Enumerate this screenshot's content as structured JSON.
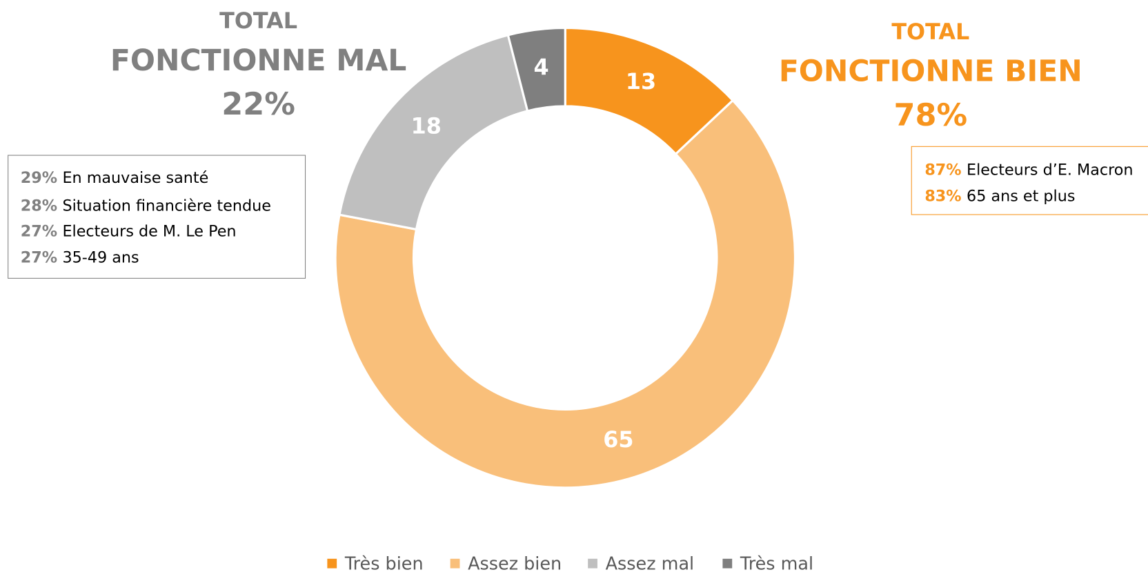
{
  "chart_data": {
    "type": "donut",
    "categories": [
      "Très bien",
      "Assez bien",
      "Assez mal",
      "Très mal"
    ],
    "values": [
      13,
      65,
      18,
      4
    ],
    "colors": [
      "#F7941D",
      "#F9BF7A",
      "#BFBFBF",
      "#7F7F7F"
    ],
    "legend": "bottom",
    "annotations": {
      "left": {
        "lines": [
          "TOTAL",
          "FONCTIONNE MAL",
          "22%"
        ],
        "color": "#808080",
        "items": [
          {
            "pct": "29%",
            "label": "En mauvaise santé"
          },
          {
            "pct": "28%",
            "label": "Situation financière tendue"
          },
          {
            "pct": "27%",
            "label": "Electeurs de M. Le Pen"
          },
          {
            "pct": "27%",
            "label": "35-49 ans"
          }
        ]
      },
      "right": {
        "lines": [
          "TOTAL",
          "FONCTIONNE BIEN",
          "78%"
        ],
        "color": "#F7941D",
        "items": [
          {
            "pct": "87%",
            "label": "Electeurs d’E. Macron"
          },
          {
            "pct": "83%",
            "label": "65 ans et plus"
          }
        ]
      }
    }
  }
}
